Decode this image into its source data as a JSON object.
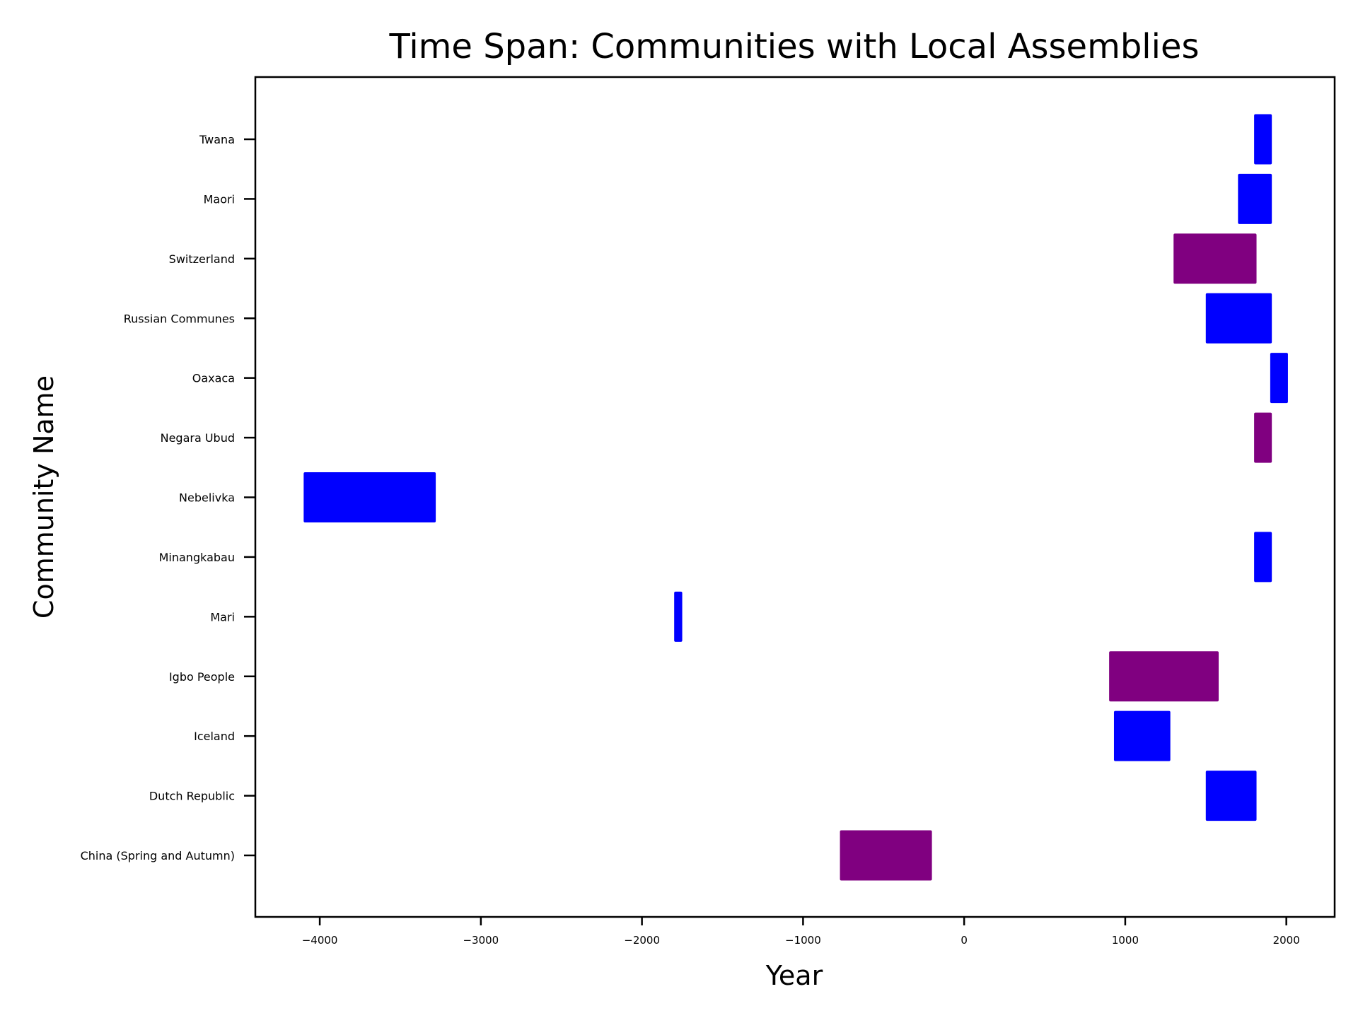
{
  "chart_data": {
    "type": "bar",
    "orientation": "horizontal-range",
    "title": "Time Span: Communities with Local Assemblies",
    "xlabel": "Year",
    "ylabel": "Community Name",
    "xlim": [
      -4400,
      2300
    ],
    "xticks": [
      -4000,
      -3000,
      -2000,
      -1000,
      0,
      1000,
      2000
    ],
    "xtick_labels": [
      "−4000",
      "−3000",
      "−2000",
      "−1000",
      "0",
      "1000",
      "2000"
    ],
    "grid": false,
    "legend": "none",
    "colors": {
      "blue": "#0000ff",
      "purple": "#800080"
    },
    "bars": [
      {
        "label": "China (Spring and Autumn)",
        "start": -771,
        "end": -200,
        "color": "#800080"
      },
      {
        "label": "Dutch Republic",
        "start": 1500,
        "end": 1815,
        "color": "#0000ff"
      },
      {
        "label": "Iceland ",
        "start": 930,
        "end": 1280,
        "color": "#0000ff"
      },
      {
        "label": "Igbo People",
        "start": 900,
        "end": 1580,
        "color": "#800080"
      },
      {
        "label": "Mari ",
        "start": -1800,
        "end": -1750,
        "color": "#0000ff"
      },
      {
        "label": "Minangkabau",
        "start": 1800,
        "end": 1910,
        "color": "#0000ff"
      },
      {
        "label": "Nebelivka",
        "start": -4100,
        "end": -3280,
        "color": "#0000ff"
      },
      {
        "label": "Negara Ubud",
        "start": 1800,
        "end": 1910,
        "color": "#800080"
      },
      {
        "label": "Oaxaca",
        "start": 1900,
        "end": 2010,
        "color": "#0000ff"
      },
      {
        "label": "Russian Communes",
        "start": 1500,
        "end": 1910,
        "color": "#0000ff"
      },
      {
        "label": "Switzerland",
        "start": 1300,
        "end": 1815,
        "color": "#800080"
      },
      {
        "label": "Maori",
        "start": 1700,
        "end": 1910,
        "color": "#0000ff"
      },
      {
        "label": "Twana",
        "start": 1800,
        "end": 1910,
        "color": "#0000ff"
      }
    ]
  }
}
